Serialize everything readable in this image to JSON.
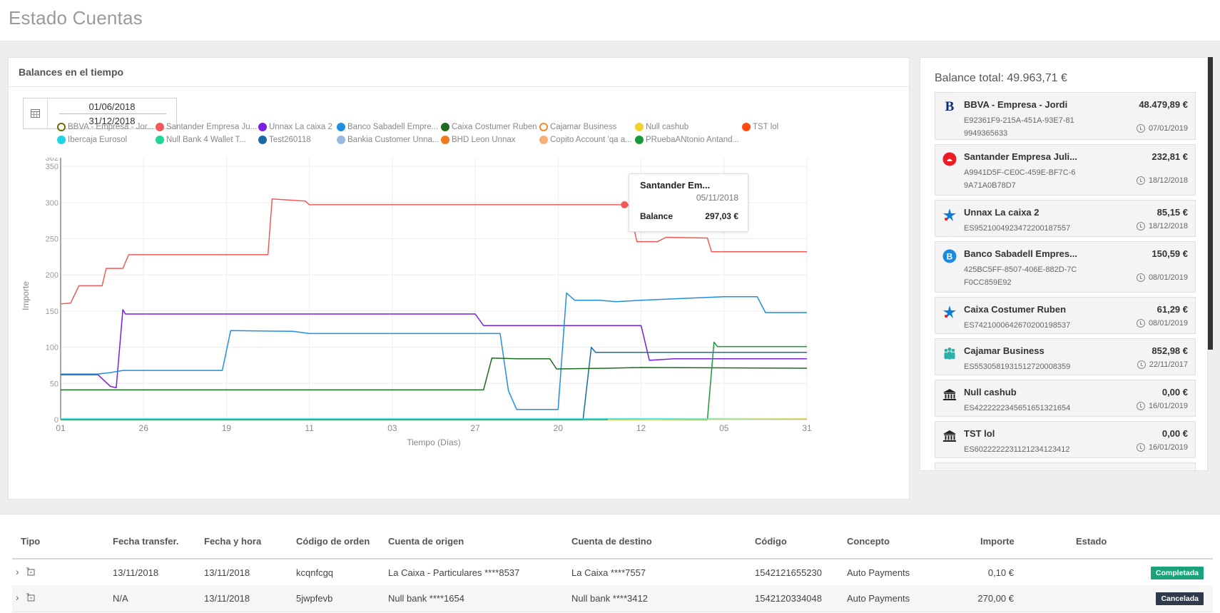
{
  "page": {
    "title": "Estado Cuentas"
  },
  "chart_card": {
    "title": "Balances en el tiempo",
    "date_from": "01/06/2018",
    "date_to": "31/12/2018"
  },
  "legend": [
    {
      "label": "BBVA - Empresa - Jor...",
      "color": "#6b6b00",
      "hollow": true
    },
    {
      "label": "Santander Empresa Ju...",
      "color": "#f25a5a"
    },
    {
      "label": "Unnax La caixa 2",
      "color": "#7a1fe0"
    },
    {
      "label": "Banco Sabadell Empre...",
      "color": "#1f8fe0"
    },
    {
      "label": "Caixa Costumer Ruben",
      "color": "#1e6b1e"
    },
    {
      "label": "Cajamar Business",
      "color": "#f08a24",
      "hollow": true
    },
    {
      "label": "Null cashub",
      "color": "#f2d22a"
    },
    {
      "label": "TST lol",
      "color": "#ff4a10"
    },
    {
      "label": "Ibercaja Eurosol",
      "color": "#1ed6e6"
    },
    {
      "label": "Null Bank 4 Wallet T...",
      "color": "#1fd69a"
    },
    {
      "label": "Test260118",
      "color": "#1a6aa8"
    },
    {
      "label": "Bankia Customer Unna...",
      "color": "#9ab8e0"
    },
    {
      "label": "BHD Leon Unnax",
      "color": "#f27a1e"
    },
    {
      "label": "Copito Account 'qa a...",
      "color": "#f5b07a"
    },
    {
      "label": "PRuebaANtonio Antand...",
      "color": "#1a9a3a"
    }
  ],
  "chart_data": {
    "type": "line",
    "xlabel": "Tiempo (Días)",
    "ylabel": "Importe",
    "ylim": [
      0,
      362
    ],
    "y_ticks": [
      0,
      50,
      100,
      150,
      200,
      250,
      300,
      350
    ],
    "y_max_label": "362",
    "x_ticks": [
      "01",
      "26",
      "19",
      "11",
      "03",
      "27",
      "20",
      "12",
      "05",
      "31"
    ],
    "grid": true,
    "series": [
      {
        "name": "Santander Empresa Ju...",
        "color": "#f25a5a",
        "points": [
          [
            0,
            160
          ],
          [
            0.12,
            161
          ],
          [
            0.22,
            185
          ],
          [
            0.5,
            185
          ],
          [
            0.55,
            209
          ],
          [
            0.75,
            209
          ],
          [
            0.82,
            228
          ],
          [
            2.5,
            228
          ],
          [
            2.55,
            305
          ],
          [
            2.95,
            302
          ],
          [
            3.0,
            297
          ],
          [
            6.85,
            297
          ],
          [
            6.95,
            246
          ],
          [
            7.2,
            246
          ],
          [
            7.3,
            252
          ],
          [
            7.8,
            251
          ],
          [
            7.85,
            232
          ],
          [
            9,
            232
          ]
        ]
      },
      {
        "name": "Unnax La caixa 2",
        "color": "#7a1fe0",
        "points": [
          [
            0,
            62
          ],
          [
            0.45,
            62
          ],
          [
            0.6,
            46
          ],
          [
            0.67,
            44
          ],
          [
            0.75,
            152
          ],
          [
            0.78,
            146
          ],
          [
            5.0,
            146
          ],
          [
            5.1,
            130
          ],
          [
            7.0,
            130
          ],
          [
            7.1,
            82
          ],
          [
            7.4,
            84
          ],
          [
            9,
            84
          ]
        ]
      },
      {
        "name": "Banco Sabadell Empre...",
        "color": "#1f8fe0",
        "points": [
          [
            0,
            63
          ],
          [
            0.45,
            63
          ],
          [
            0.6,
            65
          ],
          [
            0.75,
            68
          ],
          [
            1.95,
            68
          ],
          [
            2.05,
            123
          ],
          [
            2.8,
            122
          ],
          [
            3.0,
            119
          ],
          [
            5.3,
            119
          ],
          [
            5.4,
            40
          ],
          [
            5.5,
            14
          ],
          [
            6.0,
            14
          ],
          [
            6.1,
            175
          ],
          [
            6.2,
            165
          ],
          [
            6.5,
            165
          ],
          [
            6.7,
            163
          ],
          [
            7.0,
            165
          ],
          [
            7.4,
            167
          ],
          [
            8.0,
            170
          ],
          [
            8.4,
            170
          ],
          [
            8.5,
            148
          ],
          [
            9,
            148
          ]
        ]
      },
      {
        "name": "Test260118",
        "color": "#1a6aa8",
        "points": [
          [
            0,
            0
          ],
          [
            6.3,
            0
          ],
          [
            6.4,
            100
          ],
          [
            6.45,
            93
          ],
          [
            9,
            93
          ]
        ]
      },
      {
        "name": "Caixa Costumer Ruben",
        "color": "#1e6b1e",
        "points": [
          [
            0,
            41
          ],
          [
            5.1,
            41
          ],
          [
            5.2,
            85
          ],
          [
            5.5,
            84
          ],
          [
            5.9,
            84
          ],
          [
            5.98,
            70
          ],
          [
            6.6,
            71
          ],
          [
            7.0,
            72
          ],
          [
            9,
            71
          ]
        ]
      },
      {
        "name": "PRuebaANtonio Antand...",
        "color": "#1a9a3a",
        "points": [
          [
            0,
            0
          ],
          [
            7.8,
            0
          ],
          [
            7.88,
            107
          ],
          [
            7.92,
            101
          ],
          [
            9,
            101
          ]
        ]
      },
      {
        "name": "Ibercaja Eurosol",
        "color": "#1ed6e6",
        "points": [
          [
            0,
            1
          ],
          [
            9,
            1
          ]
        ]
      },
      {
        "name": "Null cashub",
        "color": "#f2d22a",
        "points": [
          [
            6.6,
            0
          ],
          [
            9,
            1
          ]
        ]
      }
    ],
    "tooltip": {
      "series": "Santander Em...",
      "date": "05/11/2018",
      "label": "Balance",
      "value": "297,03 €",
      "point_x": 6.8,
      "point_y": 297
    }
  },
  "balance": {
    "total_label": "Balance total: 49.963,71 €",
    "accounts": [
      {
        "name": "BBVA - Empresa - Jordi",
        "amount": "48.479,89 €",
        "iban": "E92361F9-215A-451A-93E7-819949365633",
        "date": "07/01/2019",
        "logo": "bbva-logo-icon"
      },
      {
        "name": "Santander Empresa Juli...",
        "amount": "232,81 €",
        "iban": "A9941D5F-CE0C-459E-BF7C-69A71A0B78D7",
        "date": "18/12/2018",
        "logo": "santander-logo-icon"
      },
      {
        "name": "Unnax La caixa 2",
        "amount": "85,15 €",
        "iban": "ES9521004923472200187557",
        "date": "18/12/2018",
        "logo": "lacaixa-star-icon"
      },
      {
        "name": "Banco Sabadell Empres...",
        "amount": "150,59 €",
        "iban": "425BC5FF-8507-406E-882D-7CF0CC859E92",
        "date": "08/01/2019",
        "logo": "sabadell-logo-icon"
      },
      {
        "name": "Caixa Costumer Ruben",
        "amount": "61,29 €",
        "iban": "ES7421000642670200198537",
        "date": "08/01/2019",
        "logo": "lacaixa-star-icon"
      },
      {
        "name": "Cajamar Business",
        "amount": "852,98 €",
        "iban": "ES5530581931512720008359",
        "date": "22/11/2017",
        "logo": "cajamar-people-icon"
      },
      {
        "name": "Null cashub",
        "amount": "0,00 €",
        "iban": "ES4222222345651651321654",
        "date": "16/01/2019",
        "logo": "bank-building-icon"
      },
      {
        "name": "TST lol",
        "amount": "0,00 €",
        "iban": "ES6022222231121234123412",
        "date": "16/01/2019",
        "logo": "bank-building-icon"
      }
    ]
  },
  "table": {
    "headers": {
      "tipo": "Tipo",
      "fecha_transfer": "Fecha transfer.",
      "fecha_hora": "Fecha y hora",
      "codigo_orden": "Código de orden",
      "cuenta_origen": "Cuenta de origen",
      "cuenta_destino": "Cuenta de destino",
      "codigo": "Código",
      "concepto": "Concepto",
      "importe": "Importe",
      "estado": "Estado"
    },
    "rows": [
      {
        "fecha_transfer": "13/11/2018",
        "fecha_hora": "13/11/2018",
        "codigo_orden": "kcqnfcgq",
        "cuenta_origen": "La Caixa - Particulares ****8537",
        "cuenta_destino": "La Caixa ****7557",
        "codigo": "1542121655230",
        "concepto": "Auto Payments",
        "importe": "0,10 €",
        "estado": "Completada",
        "estado_color": "#1aa37a"
      },
      {
        "fecha_transfer": "N/A",
        "fecha_hora": "13/11/2018",
        "codigo_orden": "5jwpfevb",
        "cuenta_origen": "Null bank ****1654",
        "cuenta_destino": "Null bank ****3412",
        "codigo": "1542120334048",
        "concepto": "Auto Payments",
        "importe": "270,00 €",
        "estado": "Cancelada",
        "estado_color": "#2f3a4a"
      }
    ]
  }
}
